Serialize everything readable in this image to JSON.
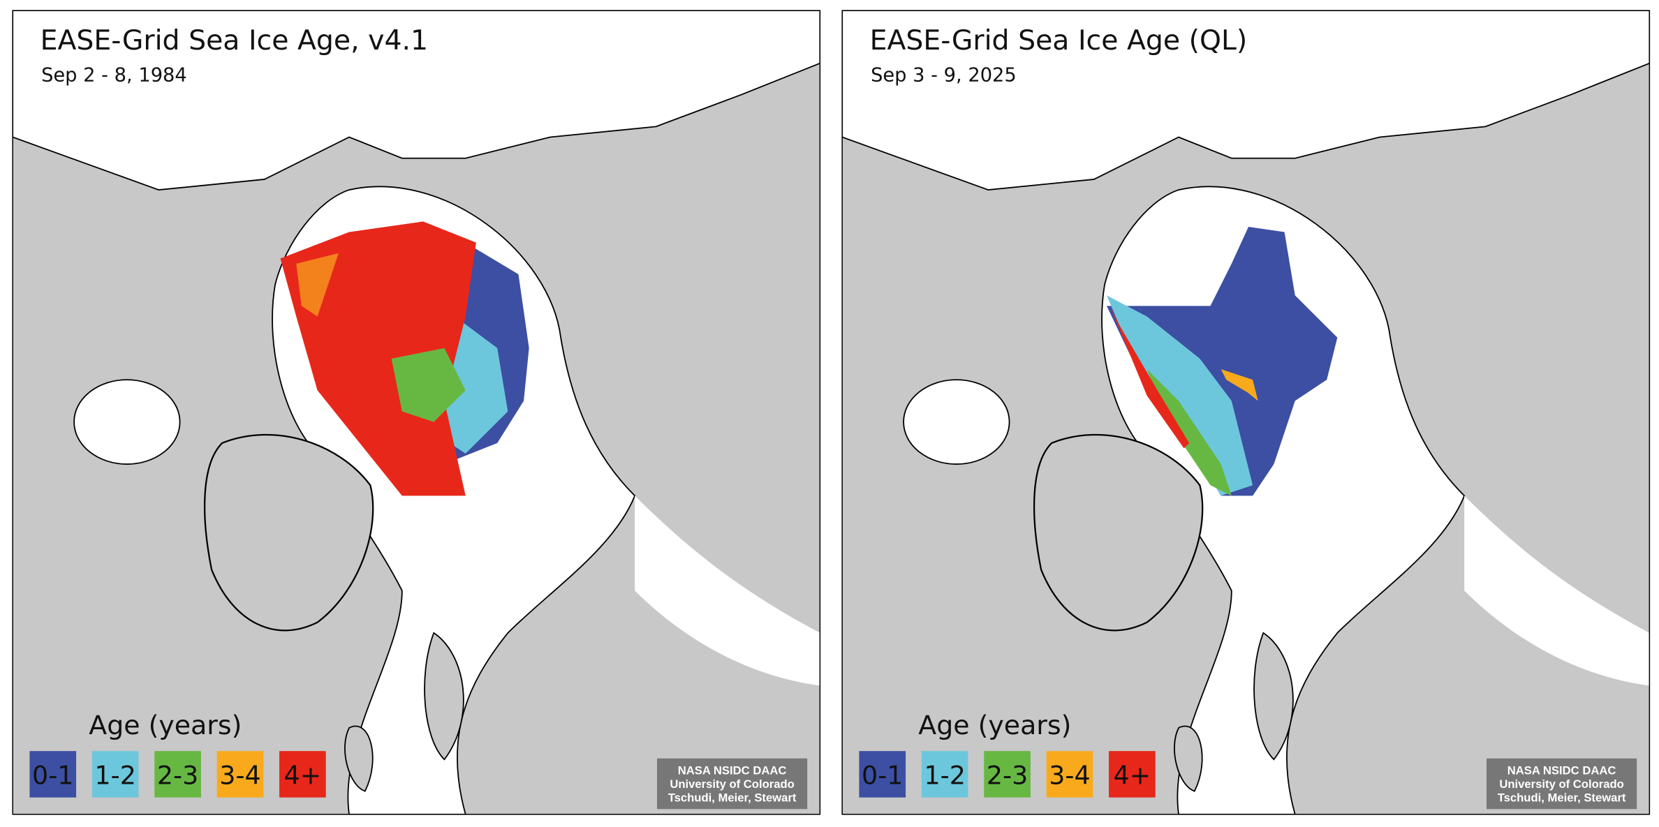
{
  "panels": [
    {
      "title": "EASE-Grid Sea Ice Age, v4.1",
      "subtitle": "Sep 2 - 8, 1984",
      "legend": {
        "title": "Age (years)",
        "items": [
          {
            "label": "0-1",
            "color": "#3c4fa3"
          },
          {
            "label": "1-2",
            "color": "#6dc7dc"
          },
          {
            "label": "2-3",
            "color": "#67b843"
          },
          {
            "label": "3-4",
            "color": "#f8aa1c"
          },
          {
            "label": "4+",
            "color": "#e8271b"
          }
        ]
      },
      "credit": [
        "NASA NSIDC DAAC",
        "University of Colorado",
        "Tschudi, Meier, Stewart"
      ]
    },
    {
      "title": "EASE-Grid Sea Ice Age (QL)",
      "subtitle": "Sep 3 - 9, 2025",
      "legend": {
        "title": "Age (years)",
        "items": [
          {
            "label": "0-1",
            "color": "#3c4fa3"
          },
          {
            "label": "1-2",
            "color": "#6dc7dc"
          },
          {
            "label": "2-3",
            "color": "#67b843"
          },
          {
            "label": "3-4",
            "color": "#f8aa1c"
          },
          {
            "label": "4+",
            "color": "#e8271b"
          }
        ]
      },
      "credit": [
        "NASA NSIDC DAAC",
        "University of Colorado",
        "Tschudi, Meier, Stewart"
      ]
    }
  ]
}
